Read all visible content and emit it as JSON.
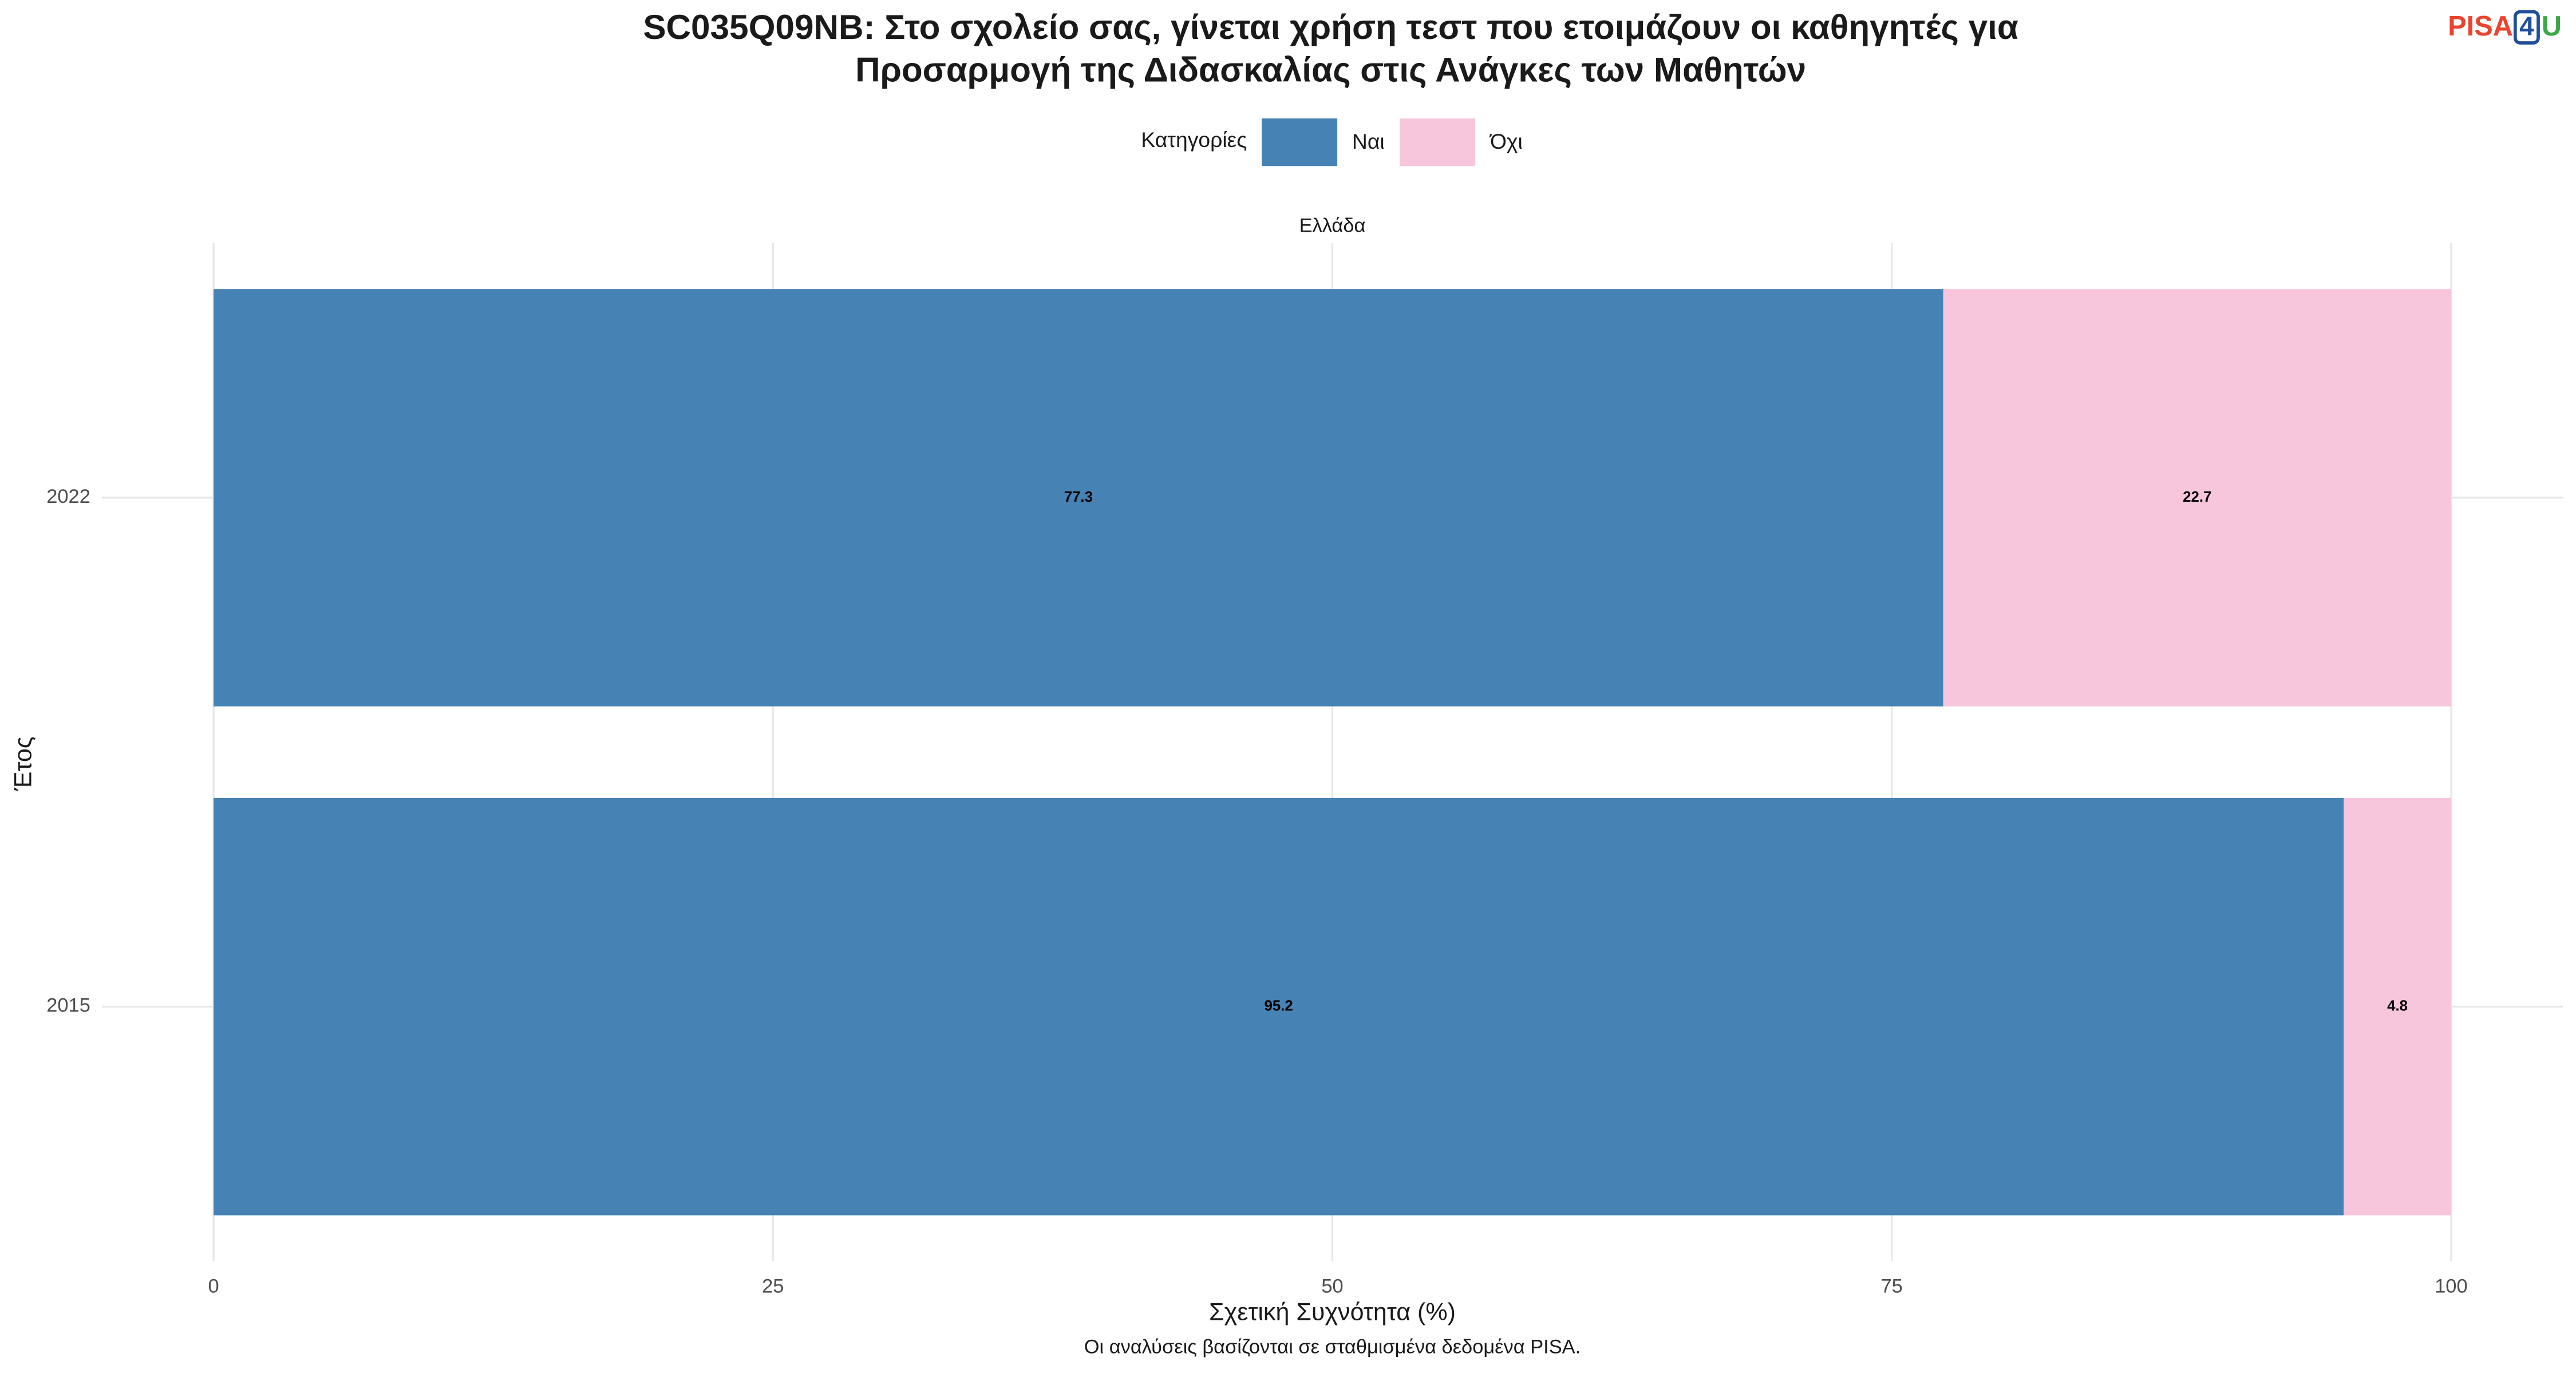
{
  "chart_data": {
    "type": "stacked-bar-horizontal",
    "title": [
      "SC035Q09NB: Στο σχολείο σας, γίνεται χρήση τεστ που ετοιμάζουν οι καθηγητές για",
      "Προσαρμογή της Διδασκαλίας στις Ανάγκες των Μαθητών"
    ],
    "legend_title": "Κατηγορίες",
    "facet": "Ελλάδα",
    "x_label": "Σχετική Συχνότητα (%)",
    "y_label": "Έτος",
    "caption": "Οι αναλύσεις βασίζονται σε σταθμισμένα δεδομένα PISA.",
    "logo": [
      "PISA",
      "4",
      "U"
    ],
    "categories": [
      "2022",
      "2015"
    ],
    "series": [
      {
        "name": "Ναι",
        "color": "#4682b4",
        "values": [
          77.3,
          95.2
        ]
      },
      {
        "name": "Όχι",
        "color": "#f7c6dc",
        "values": [
          22.7,
          4.8
        ]
      }
    ],
    "xlim": [
      0,
      100
    ],
    "xticks": [
      0,
      25,
      50,
      75,
      100
    ],
    "grid": true
  }
}
